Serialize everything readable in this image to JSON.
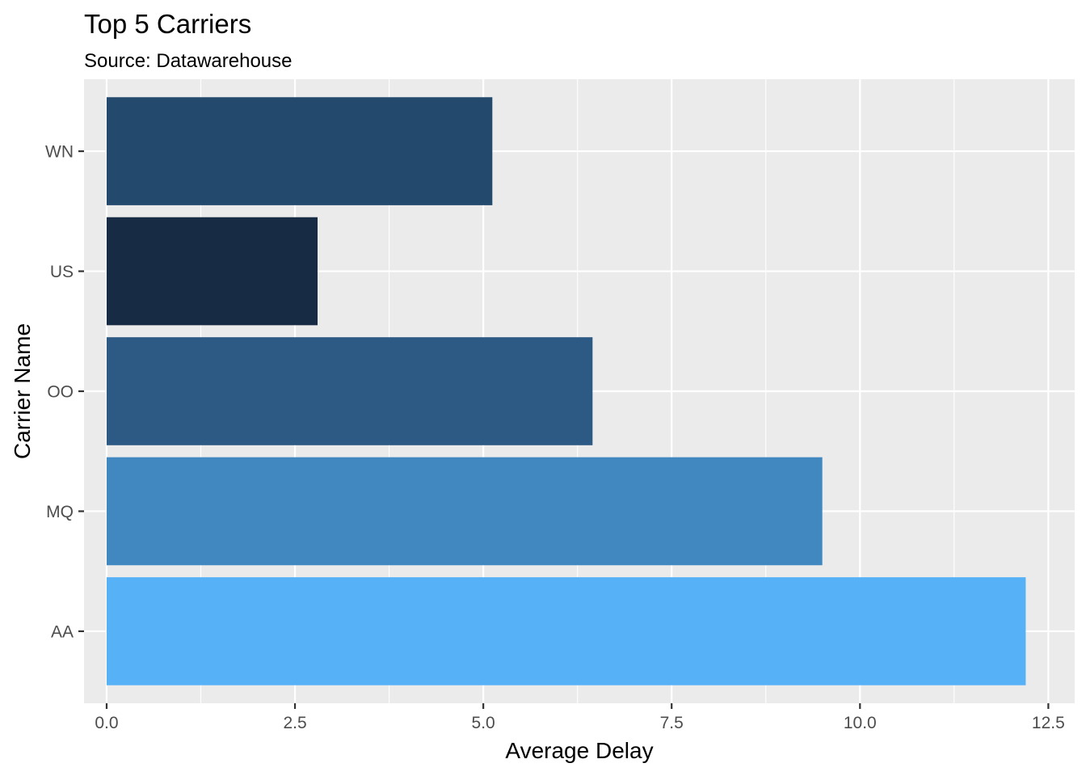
{
  "chart_data": {
    "type": "bar",
    "orientation": "horizontal",
    "title": "Top 5 Carriers",
    "subtitle": "Source: Datawarehouse",
    "xlabel": "Average Delay",
    "ylabel": "Carrier Name",
    "categories": [
      "AA",
      "MQ",
      "OO",
      "US",
      "WN"
    ],
    "values": [
      12.2,
      9.5,
      6.45,
      2.8,
      5.12
    ],
    "bar_colors": [
      "#56B1F7",
      "#4187C0",
      "#2D5A84",
      "#172B44",
      "#234A6C"
    ],
    "xlim": [
      -0.3,
      12.85
    ],
    "x_ticks": [
      0.0,
      2.5,
      5.0,
      7.5,
      10.0,
      12.5
    ],
    "x_tick_labels": [
      "0.0",
      "2.5",
      "5.0",
      "7.5",
      "10.0",
      "12.5"
    ],
    "grid": true,
    "panel_background": "#EBEBEB",
    "gridline_color": "#FFFFFF",
    "legend": "none"
  }
}
